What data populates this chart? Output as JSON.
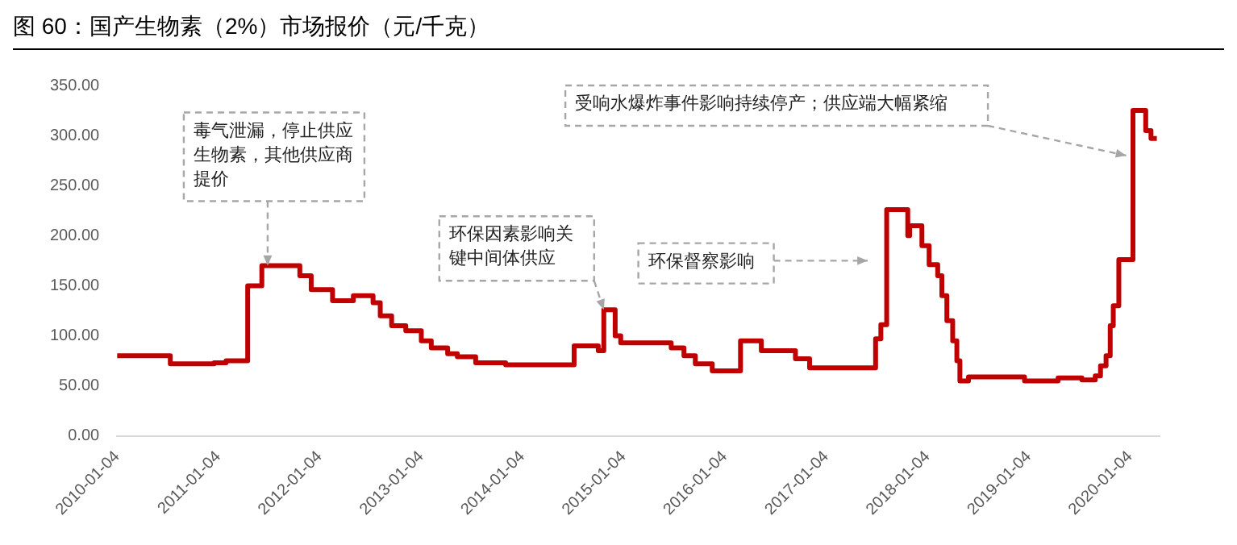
{
  "chart_data": {
    "type": "step",
    "title": "图 60：国产生物素（2%）市场报价（元/千克）",
    "x": [
      "2010-01-04",
      "2010-07-15",
      "2010-12-20",
      "2011-02-01",
      "2011-04-20",
      "2011-06-10",
      "2011-10-25",
      "2011-12-05",
      "2012-02-20",
      "2012-05-05",
      "2012-07-15",
      "2012-08-10",
      "2012-09-20",
      "2012-11-10",
      "2013-01-05",
      "2013-02-10",
      "2013-04-10",
      "2013-05-15",
      "2013-07-20",
      "2013-11-05",
      "2014-07-10",
      "2014-10-05",
      "2014-10-25",
      "2014-12-05",
      "2014-12-25",
      "2015-06-25",
      "2015-08-10",
      "2015-09-20",
      "2015-11-20",
      "2016-03-01",
      "2016-05-15",
      "2016-09-15",
      "2016-11-05",
      "2017-07-01",
      "2017-07-20",
      "2017-08-10",
      "2017-10-25",
      "2017-11-01",
      "2017-12-15",
      "2018-01-10",
      "2018-02-10",
      "2018-02-25",
      "2018-03-15",
      "2018-04-05",
      "2018-04-20",
      "2018-05-01",
      "2018-06-01",
      "2018-12-20",
      "2019-04-20",
      "2019-07-15",
      "2019-09-01",
      "2019-09-20",
      "2019-10-10",
      "2019-10-25",
      "2019-11-05",
      "2019-11-25",
      "2020-01-15",
      "2020-03-01",
      "2020-03-20",
      "2020-04-10"
    ],
    "series": [
      {
        "color": "#c00000",
        "values": [
          80,
          72,
          73,
          75,
          150,
          170,
          160,
          146,
          135,
          140,
          133,
          120,
          110,
          105,
          95,
          88,
          82,
          79,
          73,
          71,
          90,
          85,
          126,
          100,
          93,
          88,
          80,
          72,
          65,
          95,
          85,
          77,
          68,
          97,
          111,
          226,
          200,
          210,
          190,
          171,
          160,
          140,
          115,
          95,
          75,
          55,
          59,
          55,
          58,
          56,
          60,
          70,
          80,
          110,
          130,
          176,
          325,
          305,
          297,
          297
        ]
      }
    ],
    "xlim": [
      "2010-01-04",
      "2020-04-20"
    ],
    "xticks": [
      "2010-01-04",
      "2011-01-04",
      "2012-01-04",
      "2013-01-04",
      "2014-01-04",
      "2015-01-04",
      "2016-01-04",
      "2017-01-04",
      "2018-01-04",
      "2019-01-04",
      "2020-01-04"
    ],
    "ylim": [
      0,
      350
    ],
    "yticks": [
      {
        "value": 0,
        "label": "0.00"
      },
      {
        "value": 50,
        "label": "50.00"
      },
      {
        "value": 100,
        "label": "100.00"
      },
      {
        "value": 150,
        "label": "150.00"
      },
      {
        "value": 200,
        "label": "200.00"
      },
      {
        "value": 250,
        "label": "250.00"
      },
      {
        "value": 300,
        "label": "300.00"
      },
      {
        "value": 350,
        "label": "350.00"
      }
    ],
    "marker": "none",
    "line_style": "solid",
    "legend": false,
    "annotations": [
      {
        "text": "毒气泄漏，停止供应生物素，其他供应商提价",
        "x": "2011-07-01",
        "y": 170
      },
      {
        "text": "环保因素影响关键中间体供应",
        "x": "2014-10-25",
        "y": 126
      },
      "环保督察影响",
      "受响水爆炸事件影响持续停产；供应端大幅紧缩"
    ]
  }
}
